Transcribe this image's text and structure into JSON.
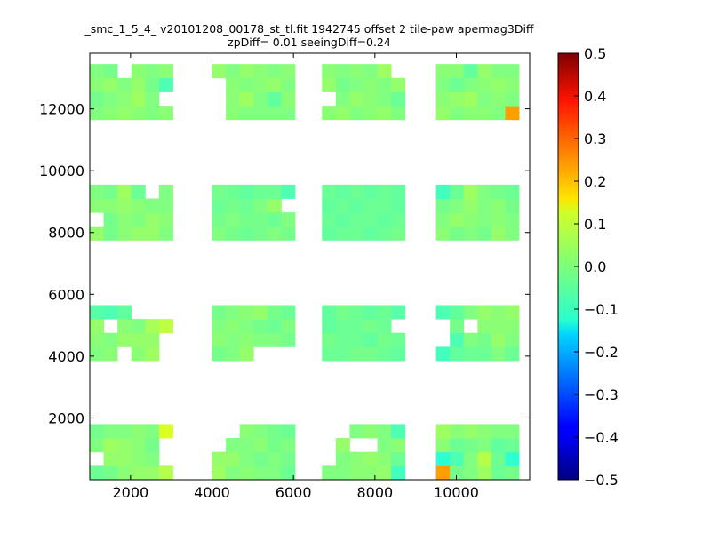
{
  "chart_data": {
    "type": "heatmap",
    "title_lines": [
      "_smc_1_5_4_ v20101208_00178_st_tl.fit 1942745 offset 2 tile-paw apermag3Diff",
      "zpDiff= 0.01 seeingDiff=0.24"
    ],
    "xlim": [
      1000,
      11800
    ],
    "ylim": [
      0,
      13800
    ],
    "x_ticks": [
      2000,
      4000,
      6000,
      8000,
      10000
    ],
    "y_ticks": [
      2000,
      4000,
      6000,
      8000,
      10000,
      12000
    ],
    "colorbar": {
      "colormap": "jet",
      "vmin": -0.5,
      "vmax": 0.5,
      "ticks": [
        "0.5",
        "0.4",
        "0.3",
        "0.2",
        "0.1",
        "0.0",
        "−0.1",
        "−0.2",
        "−0.3",
        "−0.4",
        "−0.5"
      ]
    },
    "cell_size": [
      340,
      450
    ],
    "col_x0": [
      1000,
      4000,
      6700,
      9500
    ],
    "row_y0": [
      0,
      3850,
      7750,
      11650
    ],
    "ncols": 6,
    "nrows": 4,
    "tiles": [
      {
        "col": 0,
        "row": 0,
        "values": [
          [
            -0.02,
            -0.01,
            0.01,
            0.02,
            0.02,
            0.05
          ],
          [
            null,
            0.02,
            0.02,
            0.01,
            0.0,
            null
          ],
          [
            0.0,
            0.03,
            0.02,
            0.01,
            -0.01,
            null
          ],
          [
            -0.01,
            0.0,
            0.0,
            0.01,
            0.0,
            0.09
          ]
        ]
      },
      {
        "col": 1,
        "row": 0,
        "values": [
          [
            0.03,
            0.0,
            0.01,
            0.0,
            0.0,
            -0.02
          ],
          [
            0.02,
            0.02,
            0.0,
            -0.01,
            0.0,
            -0.01
          ],
          [
            null,
            0.0,
            0.0,
            0.01,
            -0.01,
            0.0
          ],
          [
            null,
            null,
            0.01,
            0.0,
            -0.01,
            -0.02
          ]
        ]
      },
      {
        "col": 2,
        "row": 0,
        "values": [
          [
            0.0,
            0.0,
            0.01,
            0.01,
            0.02,
            -0.06
          ],
          [
            null,
            0.0,
            0.01,
            0.02,
            0.01,
            -0.02
          ],
          [
            null,
            0.02,
            null,
            null,
            0.0,
            0.01
          ],
          [
            null,
            null,
            0.0,
            0.01,
            0.0,
            -0.05
          ]
        ]
      },
      {
        "col": 3,
        "row": 0,
        "values": [
          [
            0.22,
            -0.01,
            0.0,
            0.03,
            -0.02,
            -0.01
          ],
          [
            -0.08,
            -0.05,
            0.0,
            0.05,
            -0.02,
            -0.08
          ],
          [
            0.01,
            -0.02,
            -0.01,
            0.0,
            -0.03,
            -0.02
          ],
          [
            0.03,
            0.01,
            0.02,
            0.01,
            0.0,
            0.0
          ]
        ]
      },
      {
        "col": 0,
        "row": 1,
        "values": [
          [
            0.0,
            0.01,
            null,
            0.01,
            0.03,
            null
          ],
          [
            0.01,
            0.0,
            0.02,
            0.02,
            0.02,
            null
          ],
          [
            0.02,
            null,
            0.01,
            0.0,
            0.04,
            0.06
          ],
          [
            -0.04,
            -0.05,
            -0.03,
            null,
            null,
            null
          ]
        ]
      },
      {
        "col": 1,
        "row": 1,
        "values": [
          [
            -0.01,
            0.0,
            0.02,
            null,
            null,
            null
          ],
          [
            0.01,
            0.0,
            0.01,
            0.0,
            0.0,
            -0.01
          ],
          [
            0.0,
            0.01,
            0.0,
            -0.01,
            -0.02,
            0.0
          ],
          [
            -0.01,
            0.0,
            0.01,
            0.02,
            -0.01,
            -0.02
          ]
        ]
      },
      {
        "col": 2,
        "row": 1,
        "values": [
          [
            -0.02,
            -0.02,
            -0.01,
            -0.01,
            -0.02,
            -0.03
          ],
          [
            -0.01,
            -0.02,
            -0.02,
            -0.03,
            -0.01,
            -0.02
          ],
          [
            -0.03,
            -0.02,
            -0.02,
            -0.01,
            -0.02,
            null
          ],
          [
            -0.03,
            -0.01,
            -0.02,
            -0.03,
            -0.02,
            -0.04
          ]
        ]
      },
      {
        "col": 3,
        "row": 1,
        "values": [
          [
            -0.06,
            -0.03,
            -0.02,
            -0.02,
            0.0,
            -0.02
          ],
          [
            null,
            -0.05,
            0.0,
            -0.01,
            0.02,
            0.0
          ],
          [
            null,
            -0.01,
            null,
            0.01,
            0.01,
            0.01
          ],
          [
            -0.05,
            -0.03,
            0.0,
            0.02,
            0.01,
            0.02
          ]
        ]
      },
      {
        "col": 0,
        "row": 2,
        "values": [
          [
            0.02,
            -0.01,
            0.01,
            0.02,
            0.02,
            0.0
          ],
          [
            null,
            -0.01,
            0.01,
            0.0,
            0.02,
            0.01
          ],
          [
            0.01,
            0.01,
            0.02,
            0.01,
            0.0,
            0.0
          ],
          [
            0.0,
            -0.01,
            0.03,
            -0.02,
            null,
            0.0
          ]
        ]
      },
      {
        "col": 1,
        "row": 2,
        "values": [
          [
            0.0,
            -0.01,
            -0.02,
            -0.01,
            0.0,
            -0.01
          ],
          [
            -0.01,
            0.0,
            -0.01,
            -0.01,
            -0.02,
            0.0
          ],
          [
            -0.02,
            -0.01,
            -0.02,
            0.0,
            0.02,
            null
          ],
          [
            -0.01,
            -0.02,
            -0.03,
            -0.02,
            -0.02,
            -0.05
          ]
        ]
      },
      {
        "col": 2,
        "row": 2,
        "values": [
          [
            -0.03,
            -0.02,
            -0.02,
            -0.03,
            -0.02,
            -0.01
          ],
          [
            -0.02,
            -0.03,
            -0.02,
            -0.02,
            -0.03,
            -0.02
          ],
          [
            -0.03,
            -0.02,
            -0.03,
            -0.02,
            -0.02,
            -0.03
          ],
          [
            -0.02,
            -0.03,
            -0.02,
            -0.03,
            -0.02,
            -0.03
          ]
        ]
      },
      {
        "col": 3,
        "row": 2,
        "values": [
          [
            0.01,
            -0.01,
            0.0,
            -0.01,
            0.02,
            0.0
          ],
          [
            0.0,
            0.02,
            0.01,
            0.0,
            0.01,
            0.0
          ],
          [
            -0.01,
            0.0,
            0.02,
            0.0,
            0.01,
            -0.01
          ],
          [
            -0.06,
            -0.02,
            0.03,
            0.0,
            -0.01,
            -0.02
          ]
        ]
      },
      {
        "col": 0,
        "row": 3,
        "values": [
          [
            0.0,
            0.01,
            0.02,
            0.01,
            0.0,
            0.01
          ],
          [
            -0.01,
            0.0,
            0.01,
            0.03,
            0.0,
            null
          ],
          [
            0.01,
            0.02,
            0.0,
            0.02,
            -0.01,
            -0.05
          ],
          [
            0.0,
            -0.01,
            null,
            0.01,
            0.0,
            0.01
          ]
        ]
      },
      {
        "col": 1,
        "row": 3,
        "values": [
          [
            null,
            0.01,
            0.0,
            0.0,
            0.0,
            0.0
          ],
          [
            null,
            0.01,
            0.03,
            0.0,
            -0.03,
            0.01
          ],
          [
            null,
            0.01,
            0.0,
            0.01,
            0.02,
            0.0
          ],
          [
            0.02,
            0.0,
            0.02,
            0.01,
            0.0,
            0.01
          ]
        ]
      },
      {
        "col": 2,
        "row": 3,
        "values": [
          [
            0.01,
            0.02,
            0.0,
            0.01,
            0.02,
            0.0
          ],
          [
            null,
            0.0,
            0.02,
            0.01,
            0.0,
            -0.02
          ],
          [
            0.02,
            -0.01,
            0.0,
            0.01,
            0.0,
            0.02
          ],
          [
            0.01,
            0.0,
            0.01,
            0.0,
            0.03,
            null
          ]
        ]
      },
      {
        "col": 3,
        "row": 3,
        "values": [
          [
            0.02,
            0.0,
            0.01,
            0.01,
            0.0,
            0.22
          ],
          [
            0.01,
            0.02,
            0.03,
            0.0,
            0.01,
            0.0
          ],
          [
            0.0,
            -0.02,
            0.0,
            0.01,
            0.02,
            0.01
          ],
          [
            0.01,
            0.01,
            -0.03,
            0.02,
            0.0,
            0.0
          ]
        ]
      }
    ]
  }
}
